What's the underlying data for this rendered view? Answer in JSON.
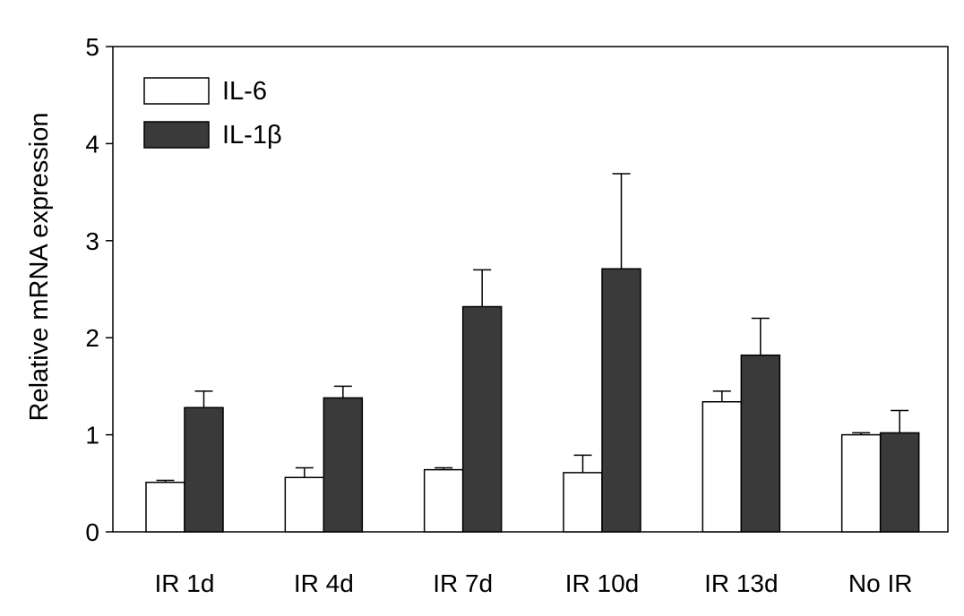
{
  "chart_data": {
    "type": "bar",
    "title": "",
    "xlabel": "",
    "ylabel": "Relative mRNA expression",
    "ylim": [
      0,
      5
    ],
    "yticks": [
      "0",
      "1",
      "2",
      "3",
      "4",
      "5"
    ],
    "categories": [
      "IR 1d",
      "IR 4d",
      "IR 7d",
      "IR 10d",
      "IR 13d",
      "No IR"
    ],
    "series": [
      {
        "name": "IL-6",
        "color": "#ffffff",
        "values": [
          0.51,
          0.56,
          0.64,
          0.61,
          1.34,
          1.0
        ],
        "errors": [
          0.02,
          0.1,
          0.02,
          0.18,
          0.11,
          0.02
        ]
      },
      {
        "name": "IL-1β",
        "color": "#3a3a3a",
        "values": [
          1.28,
          1.38,
          2.32,
          2.71,
          1.82,
          1.02
        ],
        "errors": [
          0.17,
          0.12,
          0.38,
          0.98,
          0.38,
          0.23
        ]
      }
    ],
    "grid": false,
    "legend_position": "top-left"
  }
}
